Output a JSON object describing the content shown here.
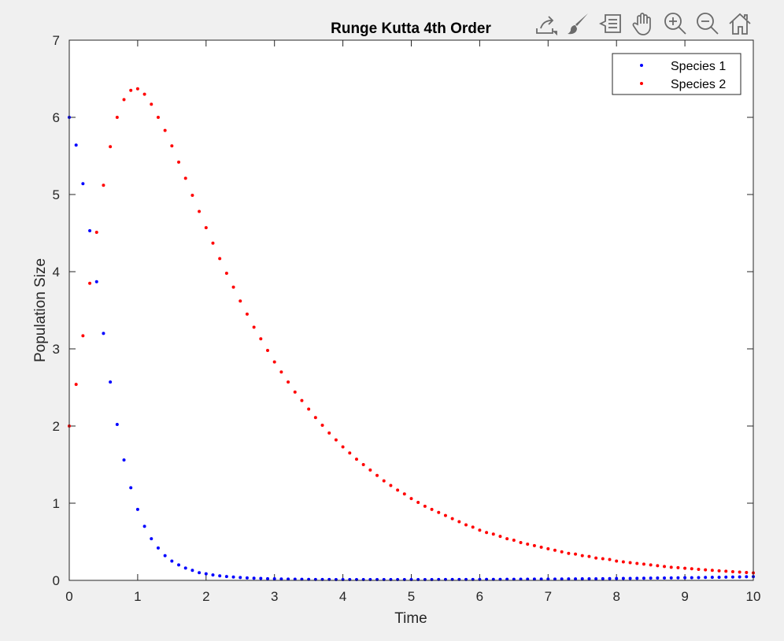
{
  "toolbar": {
    "items": [
      {
        "name": "export-icon"
      },
      {
        "name": "brush-icon"
      },
      {
        "name": "data-tips-icon"
      },
      {
        "name": "pan-icon"
      },
      {
        "name": "zoom-in-icon"
      },
      {
        "name": "zoom-out-icon"
      },
      {
        "name": "home-icon"
      }
    ]
  },
  "chart_data": {
    "type": "scatter",
    "title": "Runge Kutta 4th Order",
    "xlabel": "Time",
    "ylabel": "Population Size",
    "xlim": [
      0,
      10
    ],
    "ylim": [
      0,
      7
    ],
    "xticks": [
      "0",
      "1",
      "2",
      "3",
      "4",
      "5",
      "6",
      "7",
      "8",
      "9",
      "10"
    ],
    "yticks": [
      "0",
      "1",
      "2",
      "3",
      "4",
      "5",
      "6",
      "7"
    ],
    "grid": false,
    "legend_position": "top-right",
    "x": [
      0.0,
      0.1,
      0.2,
      0.3,
      0.4,
      0.5,
      0.6,
      0.7,
      0.8,
      0.9,
      1.0,
      1.1,
      1.2,
      1.3,
      1.4,
      1.5,
      1.6,
      1.7,
      1.8,
      1.9,
      2.0,
      2.1,
      2.2,
      2.3,
      2.4,
      2.5,
      2.6,
      2.7,
      2.8,
      2.9,
      3.0,
      3.1,
      3.2,
      3.3,
      3.4,
      3.5,
      3.6,
      3.7,
      3.8,
      3.9,
      4.0,
      4.1,
      4.2,
      4.3,
      4.4,
      4.5,
      4.6,
      4.7,
      4.8,
      4.9,
      5.0,
      5.1,
      5.2,
      5.3,
      5.4,
      5.5,
      5.6,
      5.7,
      5.8,
      5.9,
      6.0,
      6.1,
      6.2,
      6.3,
      6.4,
      6.5,
      6.6,
      6.7,
      6.8,
      6.9,
      7.0,
      7.1,
      7.2,
      7.3,
      7.4,
      7.5,
      7.6,
      7.7,
      7.8,
      7.9,
      8.0,
      8.1,
      8.2,
      8.3,
      8.4,
      8.5,
      8.6,
      8.7,
      8.8,
      8.9,
      9.0,
      9.1,
      9.2,
      9.3,
      9.4,
      9.5,
      9.6,
      9.7,
      9.8,
      9.9,
      10.0
    ],
    "series": [
      {
        "name": "Species 1",
        "color": "#0000ff",
        "values": [
          6.0,
          5.64,
          5.14,
          4.53,
          3.87,
          3.2,
          2.57,
          2.02,
          1.56,
          1.2,
          0.92,
          0.7,
          0.54,
          0.42,
          0.32,
          0.25,
          0.2,
          0.16,
          0.13,
          0.1,
          0.085,
          0.07,
          0.059,
          0.05,
          0.043,
          0.037,
          0.032,
          0.028,
          0.025,
          0.022,
          0.02,
          0.018,
          0.016,
          0.015,
          0.014,
          0.013,
          0.012,
          0.011,
          0.011,
          0.01,
          0.01,
          0.01,
          0.01,
          0.01,
          0.01,
          0.01,
          0.01,
          0.01,
          0.01,
          0.01,
          0.01,
          0.01,
          0.01,
          0.01,
          0.011,
          0.011,
          0.011,
          0.011,
          0.012,
          0.012,
          0.012,
          0.013,
          0.013,
          0.013,
          0.014,
          0.014,
          0.015,
          0.015,
          0.016,
          0.016,
          0.017,
          0.017,
          0.018,
          0.019,
          0.019,
          0.02,
          0.021,
          0.021,
          0.022,
          0.023,
          0.024,
          0.025,
          0.026,
          0.027,
          0.028,
          0.029,
          0.03,
          0.031,
          0.032,
          0.033,
          0.034,
          0.035,
          0.036,
          0.038,
          0.039,
          0.04,
          0.042,
          0.043,
          0.045,
          0.047,
          0.048
        ]
      },
      {
        "name": "Species 2",
        "color": "#ff0000",
        "values": [
          2.0,
          2.54,
          3.17,
          3.85,
          4.51,
          5.12,
          5.62,
          6.0,
          6.23,
          6.35,
          6.37,
          6.3,
          6.17,
          6.0,
          5.83,
          5.63,
          5.42,
          5.21,
          4.99,
          4.78,
          4.57,
          4.37,
          4.17,
          3.98,
          3.8,
          3.62,
          3.45,
          3.28,
          3.13,
          2.98,
          2.83,
          2.7,
          2.57,
          2.44,
          2.33,
          2.22,
          2.11,
          2.01,
          1.91,
          1.82,
          1.73,
          1.65,
          1.57,
          1.5,
          1.43,
          1.36,
          1.29,
          1.23,
          1.17,
          1.12,
          1.06,
          1.01,
          0.96,
          0.92,
          0.88,
          0.84,
          0.8,
          0.76,
          0.72,
          0.69,
          0.65,
          0.62,
          0.6,
          0.57,
          0.54,
          0.52,
          0.49,
          0.47,
          0.45,
          0.43,
          0.41,
          0.39,
          0.37,
          0.35,
          0.34,
          0.32,
          0.31,
          0.29,
          0.28,
          0.27,
          0.25,
          0.24,
          0.23,
          0.22,
          0.21,
          0.2,
          0.19,
          0.18,
          0.17,
          0.165,
          0.157,
          0.15,
          0.143,
          0.136,
          0.13,
          0.124,
          0.118,
          0.112,
          0.107,
          0.102,
          0.097
        ]
      }
    ]
  }
}
